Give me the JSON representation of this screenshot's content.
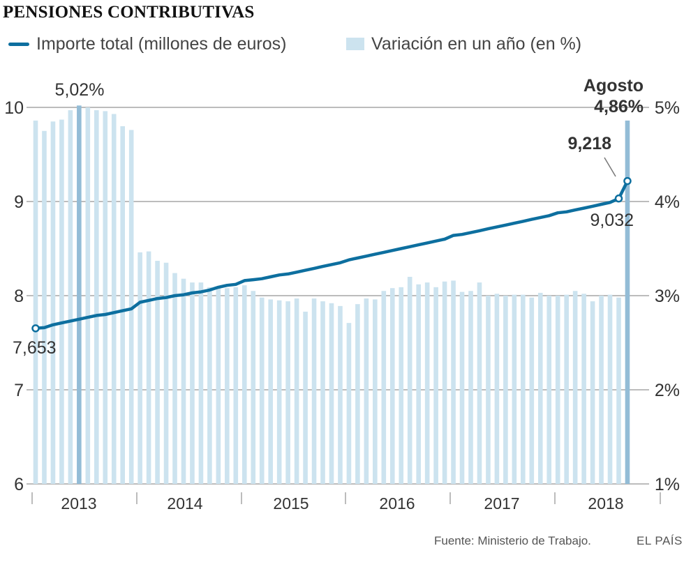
{
  "title": "PENSIONES CONTRIBUTIVAS",
  "legend": {
    "line": "Importe total (millones de euros)",
    "bars": "Variación en un año (en %)"
  },
  "colors": {
    "line": "#0d6f9f",
    "bar": "#cce3ef",
    "bar_highlight": "#93bcd6",
    "grid": "#a6a6a6",
    "text": "#333333"
  },
  "chart_data": {
    "type": "bar+line",
    "x_labels": [
      "2013",
      "2014",
      "2015",
      "2016",
      "2017",
      "2018"
    ],
    "left_axis": {
      "label": "",
      "ticks": [
        6,
        7,
        8,
        9,
        10
      ],
      "ylim": [
        6,
        10
      ]
    },
    "right_axis": {
      "label": "",
      "ticks": [
        "1%",
        "2%",
        "3%",
        "4%",
        "5%"
      ],
      "ylim": [
        1,
        5
      ]
    },
    "series": [
      {
        "name": "Variación en un año (en %)",
        "axis": "right",
        "kind": "bar",
        "values": [
          4.86,
          4.75,
          4.85,
          4.87,
          4.97,
          5.02,
          5.0,
          4.97,
          4.96,
          4.93,
          4.8,
          4.76,
          3.46,
          3.47,
          3.37,
          3.35,
          3.24,
          3.18,
          3.14,
          3.14,
          3.09,
          3.1,
          3.08,
          3.09,
          3.11,
          3.05,
          2.98,
          2.96,
          2.95,
          2.94,
          2.97,
          2.83,
          2.97,
          2.94,
          2.92,
          2.89,
          2.71,
          2.91,
          2.97,
          2.96,
          3.05,
          3.08,
          3.09,
          3.2,
          3.12,
          3.14,
          3.09,
          3.15,
          3.16,
          3.04,
          3.05,
          3.14,
          3.0,
          3.02,
          3.0,
          3.01,
          3.01,
          2.98,
          3.03,
          3.0,
          3.0,
          3.01,
          3.05,
          3.02,
          2.94,
          3.0,
          3.01,
          2.98,
          4.86
        ]
      },
      {
        "name": "Importe total (millones de euros)",
        "axis": "left",
        "kind": "line",
        "values": [
          7.653,
          7.66,
          7.69,
          7.71,
          7.73,
          7.75,
          7.77,
          7.79,
          7.8,
          7.82,
          7.84,
          7.86,
          7.93,
          7.95,
          7.97,
          7.98,
          8.0,
          8.01,
          8.03,
          8.04,
          8.06,
          8.09,
          8.11,
          8.12,
          8.16,
          8.17,
          8.18,
          8.2,
          8.22,
          8.23,
          8.25,
          8.27,
          8.29,
          8.31,
          8.33,
          8.35,
          8.38,
          8.4,
          8.42,
          8.44,
          8.46,
          8.48,
          8.5,
          8.52,
          8.54,
          8.56,
          8.58,
          8.6,
          8.64,
          8.65,
          8.67,
          8.69,
          8.71,
          8.73,
          8.75,
          8.77,
          8.79,
          8.81,
          8.83,
          8.85,
          8.88,
          8.89,
          8.91,
          8.93,
          8.95,
          8.97,
          8.99,
          9.032,
          9.218
        ]
      }
    ],
    "annotations": {
      "start_value": "7,653",
      "peak_pct": "5,02%",
      "month_label": "Agosto",
      "last_pct": "4,86%",
      "last_value": "9,218",
      "prev_value": "9,032"
    }
  },
  "footer": {
    "source": "Fuente: Ministerio de Trabajo.",
    "brand": "EL PAÍS"
  }
}
